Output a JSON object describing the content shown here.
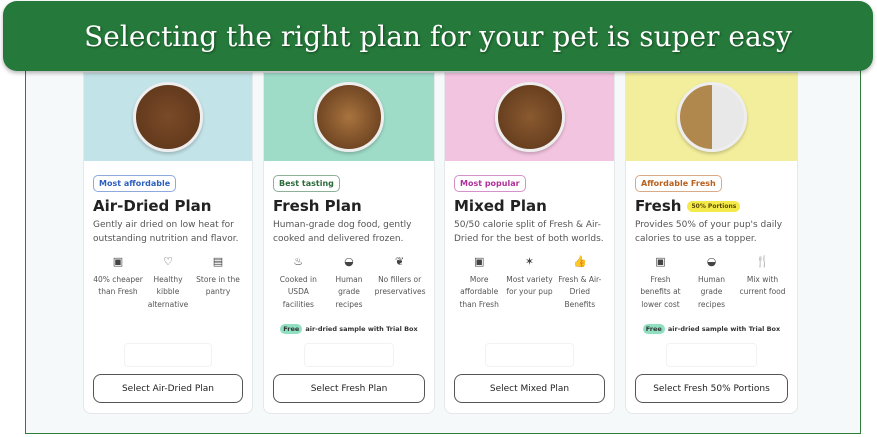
{
  "banner": {
    "title": "Selecting the right plan for your pet is super easy"
  },
  "plans": [
    {
      "image_bg": "#c2e3e8",
      "bowl": "#7a4a28",
      "badge": "Most affordable",
      "badge_color": "#2c5fbf",
      "title": "Air-Dried Plan",
      "pill": "",
      "desc": "Gently air dried on low heat for outstanding nutrition and flavor.",
      "features": [
        {
          "icon": "wallet-icon",
          "glyph": "▣",
          "text": "40% cheaper than Fresh"
        },
        {
          "icon": "heart-icon",
          "glyph": "♡",
          "text": "Healthy kibble alternative"
        },
        {
          "icon": "box-icon",
          "glyph": "▤",
          "text": "Store in the pantry"
        }
      ],
      "free": "",
      "free_text": "",
      "button": "Select Air-Dried Plan"
    },
    {
      "image_bg": "#9edcc8",
      "bowl": "#a8733e",
      "badge": "Best tasting",
      "badge_color": "#2b6b3a",
      "title": "Fresh Plan",
      "pill": "",
      "desc": "Human-grade dog food, gently cooked and delivered frozen.",
      "features": [
        {
          "icon": "pot-icon",
          "glyph": "♨",
          "text": "Cooked in USDA facilities"
        },
        {
          "icon": "bowl-icon",
          "glyph": "◒",
          "text": "Human grade recipes"
        },
        {
          "icon": "leaf-icon",
          "glyph": "❦",
          "text": "No fillers or preservatives"
        }
      ],
      "free": "Free",
      "free_text": "air-dried sample with Trial Box",
      "button": "Select Fresh Plan"
    },
    {
      "image_bg": "#f3c4e0",
      "bowl": "#8a5a30",
      "badge": "Most popular",
      "badge_color": "#b0309a",
      "title": "Mixed Plan",
      "pill": "",
      "desc": "50/50 calorie split of Fresh & Air-Dried for the best of both worlds.",
      "features": [
        {
          "icon": "wallet-icon",
          "glyph": "▣",
          "text": "More affordable than Fresh"
        },
        {
          "icon": "party-icon",
          "glyph": "✶",
          "text": "Most variety for your pup"
        },
        {
          "icon": "thumbs-up-icon",
          "glyph": "👍",
          "text": "Fresh & Air-Dried Benefits"
        }
      ],
      "free": "",
      "free_text": "",
      "button": "Select Mixed Plan"
    },
    {
      "image_bg": "#f3ee9c",
      "bowl": "#b0884e",
      "badge": "Affordable Fresh",
      "badge_color": "#b8601e",
      "title": "Fresh",
      "pill": "50% Portions",
      "desc": "Provides 50% of your pup's daily calories to use as a topper.",
      "features": [
        {
          "icon": "wallet-icon",
          "glyph": "▣",
          "text": "Fresh benefits at lower cost"
        },
        {
          "icon": "bowl-icon",
          "glyph": "◒",
          "text": "Human grade recipes"
        },
        {
          "icon": "fork-knife-icon",
          "glyph": "🍴",
          "text": "Mix with current food"
        }
      ],
      "free": "Free",
      "free_text": "air-dried sample with Trial Box",
      "button": "Select Fresh 50% Portions"
    }
  ]
}
